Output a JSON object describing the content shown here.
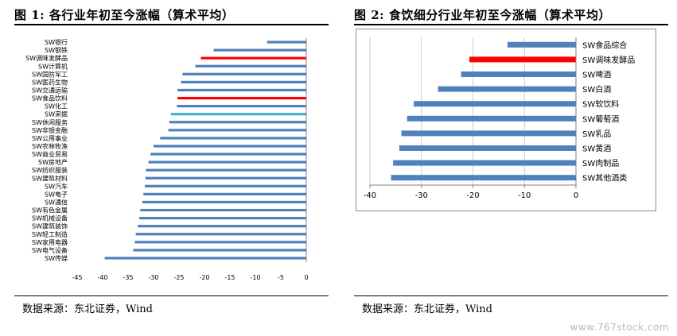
{
  "left_panel": {
    "title": "图 1: 各行业年初至今涨幅（算术平均）",
    "source": "数据来源：东北证券，Wind"
  },
  "right_panel": {
    "title": "图 2: 食饮细分行业年初至今涨幅（算术平均）",
    "source": "数据来源：东北证券，Wind"
  },
  "watermark": "www.767stock.com",
  "colors": {
    "bar": "#4f81bd",
    "highlight": "#ff0000",
    "secondary": "#4bacc6"
  },
  "chart_data": [
    {
      "type": "bar",
      "orientation": "horizontal",
      "categories": [
        "SW银行",
        "SW钢铁",
        "SW调味发酵品",
        "SW计算机",
        "SW国防军工",
        "SW医药生物",
        "SW交通运输",
        "SW食品饮料",
        "SW化工",
        "SW采掘",
        "SW休闲服务",
        "SW非银金融",
        "SW公用事业",
        "SW农林牧渔",
        "SW商业贸易",
        "SW房地产",
        "SW纺织服装",
        "SW建筑材料",
        "SW汽车",
        "SW电子",
        "SW通信",
        "SW有色金属",
        "SW机械设备",
        "SW建筑装饰",
        "SW轻工制造",
        "SW家用电器",
        "SW电气设备",
        "SW传媒"
      ],
      "values": [
        -7.7,
        -18.2,
        -20.7,
        -21.8,
        -24.3,
        -24.6,
        -25.3,
        -25.3,
        -25.4,
        -26.6,
        -26.9,
        -27.1,
        -28.7,
        -30.0,
        -30.6,
        -31.0,
        -31.5,
        -31.6,
        -31.7,
        -32.0,
        -32.2,
        -32.6,
        -32.8,
        -33.1,
        -33.5,
        -33.7,
        -34.0,
        -39.6
      ],
      "highlight": [
        "SW调味发酵品",
        "SW食品饮料"
      ],
      "secondary": [
        "SW采掘"
      ],
      "xlim": [
        -45,
        0
      ],
      "xticks": [
        "-45",
        "-40",
        "-35",
        "-30",
        "-25",
        "-20",
        "-15",
        "-10",
        "-5",
        "0"
      ],
      "grid": false,
      "legend": "none"
    },
    {
      "type": "bar",
      "orientation": "horizontal",
      "categories": [
        "SW食品综合",
        "SW调味发酵品",
        "SW啤酒",
        "SW白酒",
        "SW软饮料",
        "SW葡萄酒",
        "SW乳品",
        "SW黄酒",
        "SW肉制品",
        "SW其他酒类"
      ],
      "values": [
        -13.3,
        -20.7,
        -22.3,
        -26.8,
        -31.5,
        -32.8,
        -33.9,
        -34.3,
        -35.5,
        -35.9
      ],
      "highlight": [
        "SW调味发酵品"
      ],
      "xlim": [
        -40,
        0
      ],
      "xticks": [
        "-40",
        "-30",
        "-20",
        "-10",
        "0"
      ],
      "grid": true,
      "legend": "none"
    }
  ]
}
